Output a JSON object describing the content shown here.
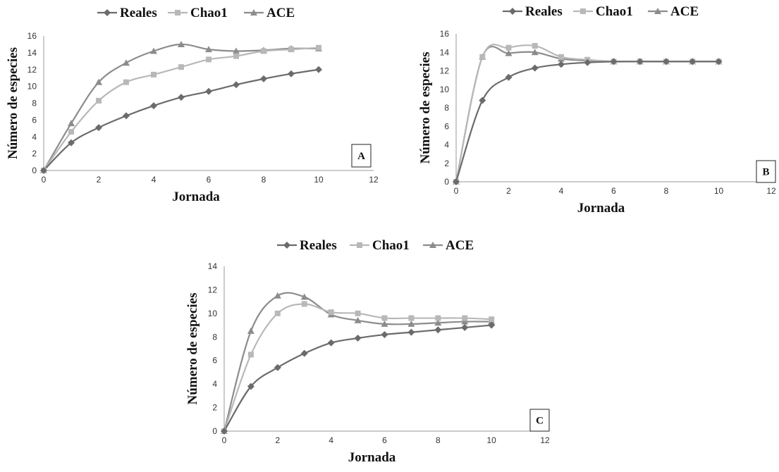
{
  "chart_data": [
    {
      "type": "line",
      "panel": "A",
      "xlabel": "Jornada",
      "ylabel": "Número de especies",
      "xlim": [
        0,
        12
      ],
      "ylim": [
        0,
        16
      ],
      "xticks": [
        0,
        2,
        4,
        6,
        8,
        10,
        12
      ],
      "yticks": [
        0,
        2,
        4,
        6,
        8,
        10,
        12,
        14,
        16
      ],
      "legend_position": "top",
      "grid": false,
      "series": [
        {
          "name": "Reales",
          "marker": "diamond",
          "color": "#6b6b6b",
          "x": [
            0,
            1,
            2,
            3,
            4,
            5,
            6,
            7,
            8,
            9,
            10
          ],
          "values": [
            0,
            3.3,
            5.1,
            6.5,
            7.7,
            8.7,
            9.4,
            10.2,
            10.9,
            11.5,
            12.0
          ]
        },
        {
          "name": "Chao1",
          "marker": "square",
          "color": "#b8b8b8",
          "x": [
            0,
            1,
            2,
            3,
            4,
            5,
            6,
            7,
            8,
            9,
            10
          ],
          "values": [
            0,
            4.6,
            8.3,
            10.5,
            11.4,
            12.3,
            13.2,
            13.6,
            14.2,
            14.4,
            14.6
          ]
        },
        {
          "name": "ACE",
          "marker": "triangle",
          "color": "#8c8c8c",
          "x": [
            0,
            1,
            2,
            3,
            4,
            5,
            6,
            7,
            8,
            9,
            10
          ],
          "values": [
            0,
            5.6,
            10.5,
            12.8,
            14.2,
            15.0,
            14.4,
            14.2,
            14.3,
            14.5,
            14.5
          ]
        }
      ]
    },
    {
      "type": "line",
      "panel": "B",
      "xlabel": "Jornada",
      "ylabel": "Número de especies",
      "xlim": [
        0,
        12
      ],
      "ylim": [
        0,
        16
      ],
      "xticks": [
        0,
        2,
        4,
        6,
        8,
        10,
        12
      ],
      "yticks": [
        0,
        2,
        4,
        6,
        8,
        10,
        12,
        14,
        16
      ],
      "legend_position": "top",
      "grid": false,
      "series": [
        {
          "name": "Reales",
          "marker": "diamond",
          "color": "#6b6b6b",
          "x": [
            0,
            1,
            2,
            3,
            4,
            5,
            6,
            7,
            8,
            9,
            10
          ],
          "values": [
            0,
            8.8,
            11.3,
            12.3,
            12.7,
            12.9,
            13.0,
            13.0,
            13.0,
            13.0,
            13.0
          ]
        },
        {
          "name": "Chao1",
          "marker": "square",
          "color": "#b8b8b8",
          "x": [
            0,
            1,
            2,
            3,
            4,
            5,
            6,
            7,
            8,
            9,
            10
          ],
          "values": [
            0,
            13.5,
            14.5,
            14.7,
            13.5,
            13.2,
            13.0,
            13.0,
            13.0,
            13.0,
            13.0
          ]
        },
        {
          "name": "ACE",
          "marker": "triangle",
          "color": "#8c8c8c",
          "x": [
            0,
            1,
            2,
            3,
            4,
            5,
            6,
            7,
            8,
            9,
            10
          ],
          "values": [
            0,
            13.5,
            13.9,
            14.0,
            13.3,
            13.1,
            13.0,
            13.0,
            13.0,
            13.0,
            13.0
          ]
        }
      ]
    },
    {
      "type": "line",
      "panel": "C",
      "xlabel": "Jornada",
      "ylabel": "Número de especies",
      "xlim": [
        0,
        12
      ],
      "ylim": [
        0,
        14
      ],
      "xticks": [
        0,
        2,
        4,
        6,
        8,
        10,
        12
      ],
      "yticks": [
        0,
        2,
        4,
        6,
        8,
        10,
        12,
        14
      ],
      "legend_position": "top",
      "grid": false,
      "series": [
        {
          "name": "Reales",
          "marker": "diamond",
          "color": "#6b6b6b",
          "x": [
            0,
            1,
            2,
            3,
            4,
            5,
            6,
            7,
            8,
            9,
            10
          ],
          "values": [
            0,
            3.8,
            5.4,
            6.6,
            7.5,
            7.9,
            8.2,
            8.4,
            8.6,
            8.8,
            9.0
          ]
        },
        {
          "name": "Chao1",
          "marker": "square",
          "color": "#b8b8b8",
          "x": [
            0,
            1,
            2,
            3,
            4,
            5,
            6,
            7,
            8,
            9,
            10
          ],
          "values": [
            0,
            6.5,
            10.0,
            10.8,
            10.1,
            10.0,
            9.6,
            9.6,
            9.6,
            9.6,
            9.5
          ]
        },
        {
          "name": "ACE",
          "marker": "triangle",
          "color": "#8c8c8c",
          "x": [
            0,
            1,
            2,
            3,
            4,
            5,
            6,
            7,
            8,
            9,
            10
          ],
          "values": [
            0,
            8.5,
            11.5,
            11.4,
            9.9,
            9.4,
            9.1,
            9.1,
            9.2,
            9.3,
            9.3
          ]
        }
      ]
    }
  ]
}
